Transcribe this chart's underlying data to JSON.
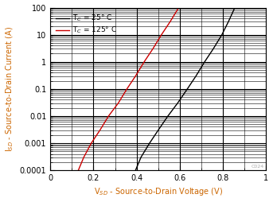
{
  "title": "",
  "xlabel": "V$_{SD}$ - Source-to-Drain Voltage (V)",
  "ylabel": "I$_{SD}$ - Source-to-Drain Current (A)",
  "xlim": [
    0,
    1
  ],
  "ylim_log": [
    0.0001,
    100
  ],
  "legend": [
    {
      "label": "T$_C$ = 25° C",
      "color": "#000000"
    },
    {
      "label": "T$_C$ = 125° C",
      "color": "#cc0000"
    }
  ],
  "line_25C": {
    "x": [
      0.395,
      0.42,
      0.46,
      0.5,
      0.545,
      0.59,
      0.635,
      0.675,
      0.715,
      0.755,
      0.795,
      0.825,
      0.855
    ],
    "y": [
      0.0001,
      0.0003,
      0.001,
      0.003,
      0.01,
      0.03,
      0.1,
      0.3,
      1.0,
      3.0,
      10.0,
      30.0,
      100.0
    ],
    "color": "#000000"
  },
  "line_125C": {
    "x": [
      0.13,
      0.155,
      0.19,
      0.23,
      0.27,
      0.315,
      0.355,
      0.395,
      0.435,
      0.475,
      0.515,
      0.555,
      0.595
    ],
    "y": [
      0.0001,
      0.0003,
      0.001,
      0.003,
      0.01,
      0.03,
      0.1,
      0.3,
      1.0,
      3.0,
      10.0,
      30.0,
      100.0
    ],
    "color": "#cc0000"
  },
  "watermark": "C024",
  "spine_color": "#000000",
  "tick_label_color": "#cc6600",
  "grid_major_color": "#000000",
  "grid_minor_color": "#000000",
  "background_color": "#ffffff",
  "label_color": "#cc6600"
}
